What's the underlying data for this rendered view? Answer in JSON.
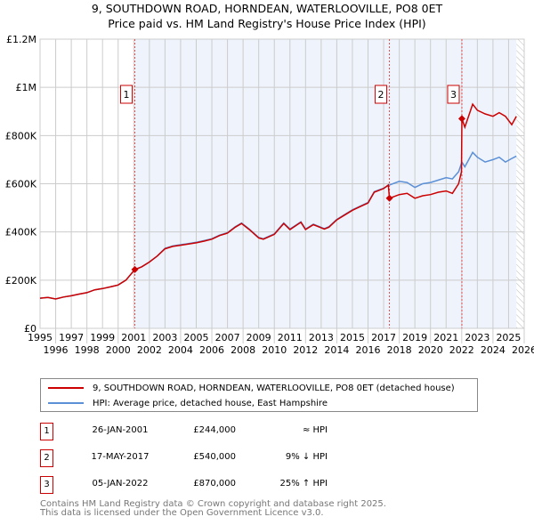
{
  "chart_data": {
    "type": "line",
    "title": "9, SOUTHDOWN ROAD, HORNDEAN, WATERLOOVILLE, PO8 0ET",
    "subtitle": "Price paid vs. HM Land Registry's House Price Index (HPI)",
    "xlim": [
      1995,
      2026
    ],
    "ylim": [
      0,
      1200000
    ],
    "x_ticks": [
      "1995",
      "1996",
      "1997",
      "1998",
      "1999",
      "2000",
      "2001",
      "2002",
      "2003",
      "2004",
      "2005",
      "2006",
      "2007",
      "2008",
      "2009",
      "2010",
      "2011",
      "2012",
      "2013",
      "2014",
      "2015",
      "2016",
      "2017",
      "2018",
      "2019",
      "2020",
      "2021",
      "2022",
      "2023",
      "2024",
      "2025",
      "2026"
    ],
    "y_ticks": [
      {
        "v": 0,
        "label": "£0"
      },
      {
        "v": 200000,
        "label": "£200K"
      },
      {
        "v": 400000,
        "label": "£400K"
      },
      {
        "v": 600000,
        "label": "£600K"
      },
      {
        "v": 800000,
        "label": "£800K"
      },
      {
        "v": 1000000,
        "label": "£1M"
      },
      {
        "v": 1200000,
        "label": "£1.2M"
      }
    ],
    "grid": true,
    "shaded_from": 2001.07,
    "hatched_from": 2025.5,
    "series": [
      {
        "name": "9, SOUTHDOWN ROAD, HORNDEAN, WATERLOOVILLE, PO8 0ET (detached house)",
        "color": "#cc0000",
        "points": [
          [
            1995,
            125000
          ],
          [
            1995.5,
            128000
          ],
          [
            1996,
            122000
          ],
          [
            1996.5,
            130000
          ],
          [
            1997,
            135000
          ],
          [
            1997.5,
            142000
          ],
          [
            1998,
            148000
          ],
          [
            1998.5,
            160000
          ],
          [
            1999,
            165000
          ],
          [
            1999.5,
            172000
          ],
          [
            2000,
            180000
          ],
          [
            2000.5,
            200000
          ],
          [
            2001.07,
            244000
          ],
          [
            2001.5,
            255000
          ],
          [
            2002,
            275000
          ],
          [
            2002.5,
            300000
          ],
          [
            2003,
            330000
          ],
          [
            2003.5,
            340000
          ],
          [
            2004,
            345000
          ],
          [
            2004.5,
            350000
          ],
          [
            2005,
            355000
          ],
          [
            2005.5,
            362000
          ],
          [
            2006,
            370000
          ],
          [
            2006.5,
            385000
          ],
          [
            2007,
            395000
          ],
          [
            2007.5,
            420000
          ],
          [
            2007.9,
            435000
          ],
          [
            2008.4,
            410000
          ],
          [
            2009,
            375000
          ],
          [
            2009.3,
            370000
          ],
          [
            2010,
            390000
          ],
          [
            2010.6,
            435000
          ],
          [
            2011,
            410000
          ],
          [
            2011.7,
            440000
          ],
          [
            2012,
            410000
          ],
          [
            2012.5,
            430000
          ],
          [
            2013.2,
            412000
          ],
          [
            2013.5,
            420000
          ],
          [
            2014,
            450000
          ],
          [
            2014.5,
            470000
          ],
          [
            2015,
            490000
          ],
          [
            2015.5,
            505000
          ],
          [
            2016,
            520000
          ],
          [
            2016.4,
            565000
          ],
          [
            2017,
            580000
          ],
          [
            2017.3,
            595000
          ],
          [
            2017.37,
            540000
          ],
          [
            2018,
            555000
          ],
          [
            2018.5,
            560000
          ],
          [
            2019,
            540000
          ],
          [
            2019.5,
            550000
          ],
          [
            2020,
            555000
          ],
          [
            2020.5,
            565000
          ],
          [
            2021,
            570000
          ],
          [
            2021.4,
            560000
          ],
          [
            2021.8,
            600000
          ],
          [
            2021.98,
            650000
          ],
          [
            2022.01,
            870000
          ],
          [
            2022.2,
            835000
          ],
          [
            2022.7,
            930000
          ],
          [
            2023,
            905000
          ],
          [
            2023.5,
            890000
          ],
          [
            2024,
            880000
          ],
          [
            2024.4,
            895000
          ],
          [
            2024.8,
            880000
          ],
          [
            2025.2,
            845000
          ],
          [
            2025.5,
            880000
          ]
        ]
      },
      {
        "name": "HPI: Average price, detached house, East Hampshire",
        "color": "#5b8fd6",
        "points": [
          [
            1995,
            125000
          ],
          [
            1995.5,
            128000
          ],
          [
            1996,
            122000
          ],
          [
            1996.5,
            130000
          ],
          [
            1997,
            135000
          ],
          [
            1997.5,
            142000
          ],
          [
            1998,
            148000
          ],
          [
            1998.5,
            160000
          ],
          [
            1999,
            165000
          ],
          [
            1999.5,
            172000
          ],
          [
            2000,
            180000
          ],
          [
            2000.5,
            200000
          ],
          [
            2001.07,
            244000
          ],
          [
            2001.5,
            255000
          ],
          [
            2002,
            275000
          ],
          [
            2002.5,
            300000
          ],
          [
            2003,
            332000
          ],
          [
            2003.5,
            342000
          ],
          [
            2004,
            347000
          ],
          [
            2004.5,
            352000
          ],
          [
            2005,
            357000
          ],
          [
            2005.5,
            364000
          ],
          [
            2006,
            372000
          ],
          [
            2006.5,
            387000
          ],
          [
            2007,
            397000
          ],
          [
            2007.5,
            422000
          ],
          [
            2007.9,
            437000
          ],
          [
            2008.4,
            412000
          ],
          [
            2009,
            377000
          ],
          [
            2009.3,
            372000
          ],
          [
            2010,
            392000
          ],
          [
            2010.6,
            437000
          ],
          [
            2011,
            412000
          ],
          [
            2011.7,
            442000
          ],
          [
            2012,
            412000
          ],
          [
            2012.5,
            432000
          ],
          [
            2013.2,
            414000
          ],
          [
            2013.5,
            422000
          ],
          [
            2014,
            452000
          ],
          [
            2014.5,
            472000
          ],
          [
            2015,
            492000
          ],
          [
            2015.5,
            507000
          ],
          [
            2016,
            522000
          ],
          [
            2016.4,
            567000
          ],
          [
            2017,
            582000
          ],
          [
            2017.37,
            595000
          ],
          [
            2018,
            610000
          ],
          [
            2018.5,
            605000
          ],
          [
            2019,
            585000
          ],
          [
            2019.5,
            600000
          ],
          [
            2020,
            605000
          ],
          [
            2020.5,
            615000
          ],
          [
            2021,
            625000
          ],
          [
            2021.4,
            620000
          ],
          [
            2021.8,
            650000
          ],
          [
            2022.01,
            690000
          ],
          [
            2022.2,
            670000
          ],
          [
            2022.7,
            730000
          ],
          [
            2023,
            710000
          ],
          [
            2023.5,
            690000
          ],
          [
            2024,
            700000
          ],
          [
            2024.4,
            710000
          ],
          [
            2024.8,
            690000
          ],
          [
            2025.2,
            705000
          ],
          [
            2025.5,
            715000
          ]
        ]
      }
    ],
    "sales": [
      {
        "num": "1",
        "x": 2001.07,
        "value": 244000,
        "date": "26-JAN-2001",
        "price": "£244,000",
        "hpi": "≈ HPI"
      },
      {
        "num": "2",
        "x": 2017.37,
        "value": 540000,
        "date": "17-MAY-2017",
        "price": "£540,000",
        "hpi": "9% ↓ HPI"
      },
      {
        "num": "3",
        "x": 2022.01,
        "value": 870000,
        "date": "05-JAN-2022",
        "price": "£870,000",
        "hpi": "25% ↑ HPI"
      }
    ]
  },
  "legend": {
    "red": "9, SOUTHDOWN ROAD, HORNDEAN, WATERLOOVILLE, PO8 0ET (detached house)",
    "blue": "HPI: Average price, detached house, East Hampshire"
  },
  "footer": {
    "line1": "Contains HM Land Registry data © Crown copyright and database right 2025.",
    "line2": "This data is licensed under the Open Government Licence v3.0."
  }
}
